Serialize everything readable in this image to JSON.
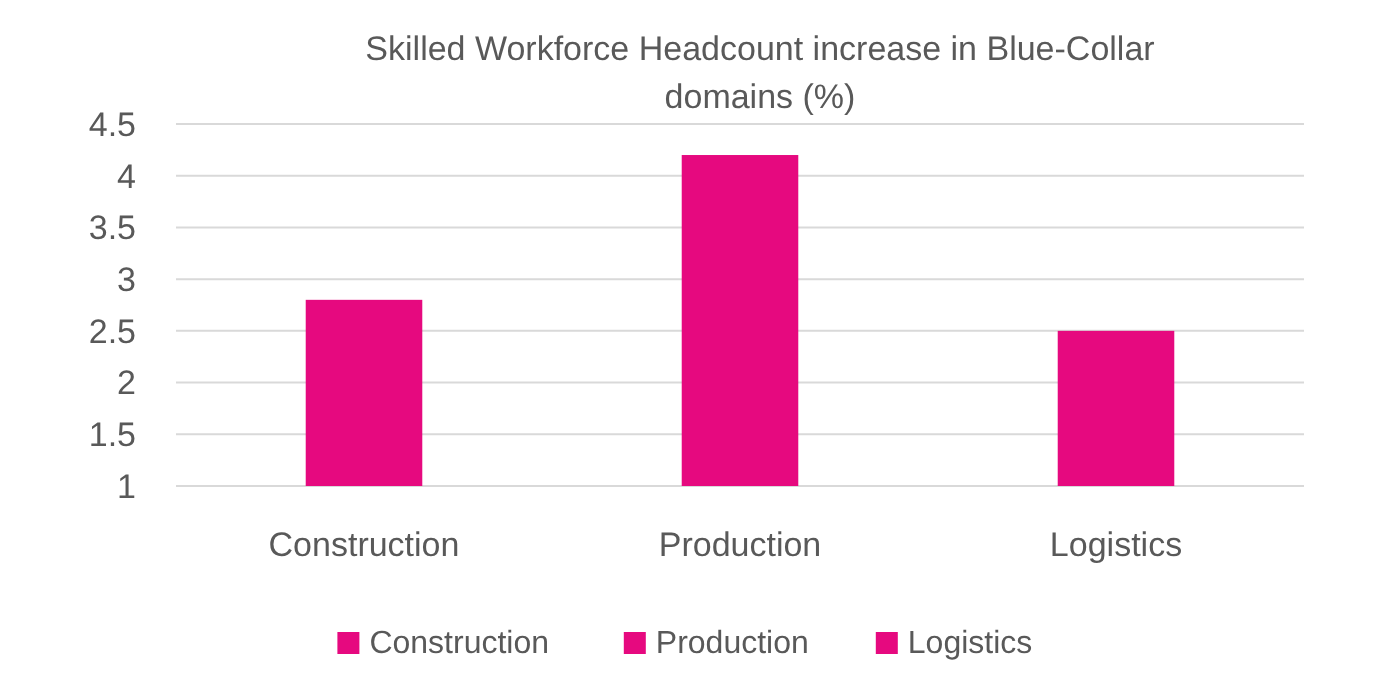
{
  "chart_data": {
    "type": "bar",
    "title": "Skilled Workforce Headcount increase in Blue-Collar domains (%)",
    "categories": [
      "Construction",
      "Production",
      "Logistics"
    ],
    "series": [
      {
        "name": "Construction",
        "color": "#e6097f",
        "values": [
          2.8,
          null,
          null
        ]
      },
      {
        "name": "Production",
        "color": "#e6097f",
        "values": [
          null,
          4.2,
          null
        ]
      },
      {
        "name": "Logistics",
        "color": "#e6097f",
        "values": [
          null,
          null,
          2.5
        ]
      }
    ],
    "ylim": [
      1,
      4.5
    ],
    "yticks": [
      1,
      1.5,
      2,
      2.5,
      3,
      3.5,
      4,
      4.5
    ],
    "grid": "y",
    "legend": "bottom"
  }
}
